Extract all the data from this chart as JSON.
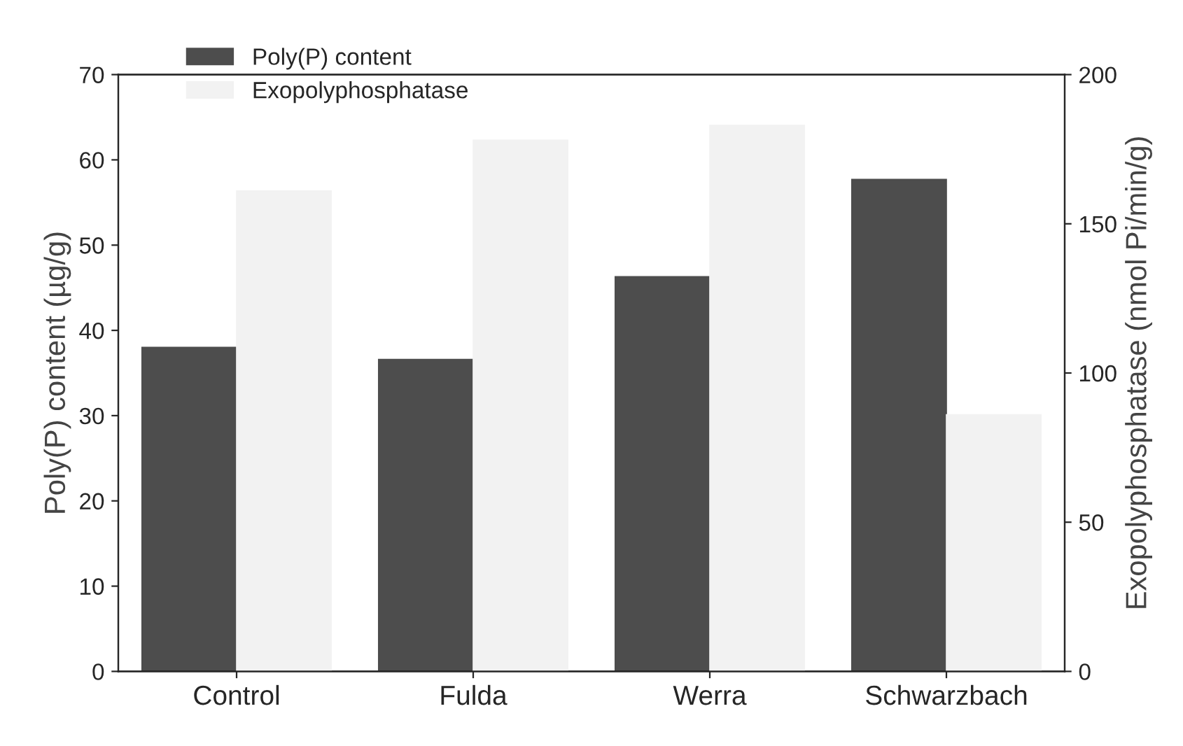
{
  "chart_data": {
    "type": "bar",
    "categories": [
      "Control",
      "Fulda",
      "Werra",
      "Schwarzbach"
    ],
    "series": [
      {
        "name": "Poly(P) content",
        "color": "#4d4d4d",
        "values": [
          38,
          36.6,
          46.3,
          57.7
        ]
      },
      {
        "name": "Exopolyphosphatase",
        "color": "#f2f2f2",
        "values": [
          161,
          178,
          183,
          86
        ],
        "axis": "y2"
      }
    ],
    "ylabel": "Poly(P) content (µg/g)",
    "y2label": "Exopolyphosphatase (nmol Pi/min/g)",
    "ylim": [
      0,
      70
    ],
    "yticks": [
      0,
      10,
      20,
      30,
      40,
      50,
      60,
      70
    ],
    "y2lim": [
      0,
      200
    ],
    "y2ticks": [
      0,
      50,
      100,
      150,
      200
    ],
    "legend": "top left",
    "grid": false
  }
}
